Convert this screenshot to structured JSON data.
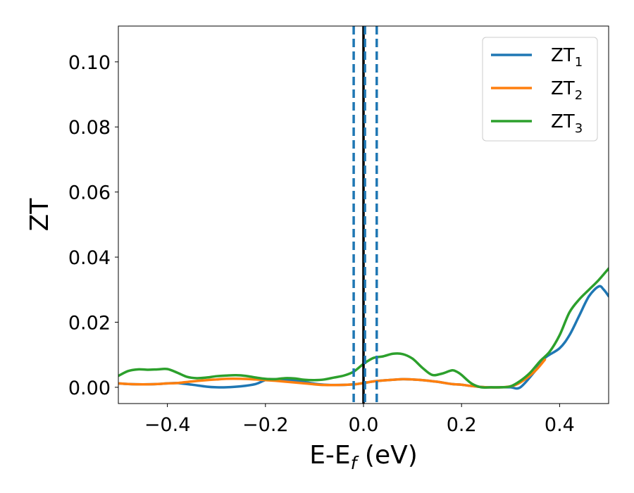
{
  "chart_data": {
    "type": "line",
    "xlabel": "E-E",
    "xlabel_sub": "f",
    "xlabel_unit": " (eV)",
    "ylabel": "ZT",
    "xlim": [
      -0.5,
      0.5
    ],
    "ylim": [
      -0.005,
      0.111
    ],
    "xticks": [
      -0.4,
      -0.2,
      0.0,
      0.2,
      0.4
    ],
    "xtick_labels": [
      "−0.4",
      "−0.2",
      "0.0",
      "0.2",
      "0.4"
    ],
    "yticks": [
      0.0,
      0.02,
      0.04,
      0.06,
      0.08,
      0.1
    ],
    "ytick_labels": [
      "0.00",
      "0.02",
      "0.04",
      "0.06",
      "0.08",
      "0.10"
    ],
    "legend_position": "top-right",
    "vlines": [
      {
        "x": 0.0,
        "color": "#000000",
        "style": "solid"
      },
      {
        "x": -0.02,
        "color": "#1f77b4",
        "style": "dashed"
      },
      {
        "x": 0.003,
        "color": "#1f77b4",
        "style": "dashed"
      },
      {
        "x": 0.027,
        "color": "#1f77b4",
        "style": "dashed"
      }
    ],
    "series": [
      {
        "name": "ZT",
        "sub": "1",
        "color": "#1f77b4",
        "x": [
          -0.5,
          -0.48,
          -0.45,
          -0.42,
          -0.4,
          -0.38,
          -0.35,
          -0.32,
          -0.3,
          -0.28,
          -0.25,
          -0.22,
          -0.2,
          -0.18,
          -0.15,
          -0.12,
          -0.1,
          -0.08,
          -0.05,
          -0.02,
          0.0,
          0.02,
          0.05,
          0.08,
          0.1,
          0.12,
          0.15,
          0.18,
          0.2,
          0.22,
          0.25,
          0.28,
          0.3,
          0.32,
          0.35,
          0.37,
          0.4,
          0.42,
          0.44,
          0.46,
          0.48,
          0.49,
          0.5
        ],
        "y": [
          0.0012,
          0.001,
          0.0009,
          0.001,
          0.0012,
          0.0013,
          0.0008,
          0.0002,
          0.0,
          0.0,
          0.0003,
          0.001,
          0.0022,
          0.0025,
          0.0022,
          0.0016,
          0.0011,
          0.0008,
          0.0007,
          0.0009,
          0.0013,
          0.0018,
          0.0022,
          0.0025,
          0.0024,
          0.0022,
          0.0017,
          0.001,
          0.0008,
          0.0004,
          0.0,
          0.0,
          0.0,
          0.0,
          0.005,
          0.009,
          0.012,
          0.016,
          0.022,
          0.028,
          0.031,
          0.03,
          0.028
        ]
      },
      {
        "name": "ZT",
        "sub": "2",
        "color": "#ff7f0e",
        "x": [
          -0.5,
          -0.48,
          -0.45,
          -0.42,
          -0.4,
          -0.38,
          -0.35,
          -0.32,
          -0.3,
          -0.28,
          -0.25,
          -0.22,
          -0.2,
          -0.18,
          -0.15,
          -0.12,
          -0.1,
          -0.08,
          -0.05,
          -0.02,
          0.0,
          0.02,
          0.05,
          0.08,
          0.1,
          0.12,
          0.15,
          0.18,
          0.2,
          0.22,
          0.25,
          0.28,
          0.3,
          0.32,
          0.35,
          0.37
        ],
        "y": [
          0.0012,
          0.001,
          0.0009,
          0.001,
          0.0012,
          0.0013,
          0.0018,
          0.0022,
          0.0024,
          0.0026,
          0.0026,
          0.0024,
          0.0022,
          0.002,
          0.0016,
          0.0012,
          0.0009,
          0.0007,
          0.0007,
          0.0009,
          0.0013,
          0.0018,
          0.0022,
          0.0025,
          0.0024,
          0.0022,
          0.0017,
          0.001,
          0.0008,
          0.0004,
          0.0,
          0.0,
          0.0003,
          0.0015,
          0.005,
          0.0085
        ]
      },
      {
        "name": "ZT",
        "sub": "3",
        "color": "#2ca02c",
        "x": [
          -0.5,
          -0.48,
          -0.46,
          -0.44,
          -0.42,
          -0.4,
          -0.38,
          -0.36,
          -0.34,
          -0.32,
          -0.3,
          -0.28,
          -0.26,
          -0.24,
          -0.22,
          -0.2,
          -0.18,
          -0.16,
          -0.14,
          -0.12,
          -0.1,
          -0.08,
          -0.06,
          -0.04,
          -0.02,
          0.0,
          0.02,
          0.04,
          0.06,
          0.08,
          0.1,
          0.12,
          0.14,
          0.16,
          0.18,
          0.19,
          0.2,
          0.22,
          0.24,
          0.26,
          0.28,
          0.3,
          0.32,
          0.34,
          0.36,
          0.38,
          0.4,
          0.42,
          0.44,
          0.46,
          0.48,
          0.5
        ],
        "y": [
          0.0035,
          0.005,
          0.0055,
          0.0054,
          0.0055,
          0.0056,
          0.0045,
          0.0032,
          0.0028,
          0.003,
          0.0034,
          0.0036,
          0.0037,
          0.0035,
          0.003,
          0.0026,
          0.0025,
          0.0028,
          0.0027,
          0.0023,
          0.0022,
          0.0024,
          0.003,
          0.0036,
          0.0048,
          0.0072,
          0.009,
          0.0095,
          0.0103,
          0.0102,
          0.0088,
          0.006,
          0.0038,
          0.0042,
          0.0052,
          0.0048,
          0.0038,
          0.0012,
          0.0,
          0.0,
          0.0,
          0.0003,
          0.002,
          0.0045,
          0.008,
          0.011,
          0.016,
          0.023,
          0.027,
          0.03,
          0.033,
          0.0365
        ]
      }
    ]
  }
}
